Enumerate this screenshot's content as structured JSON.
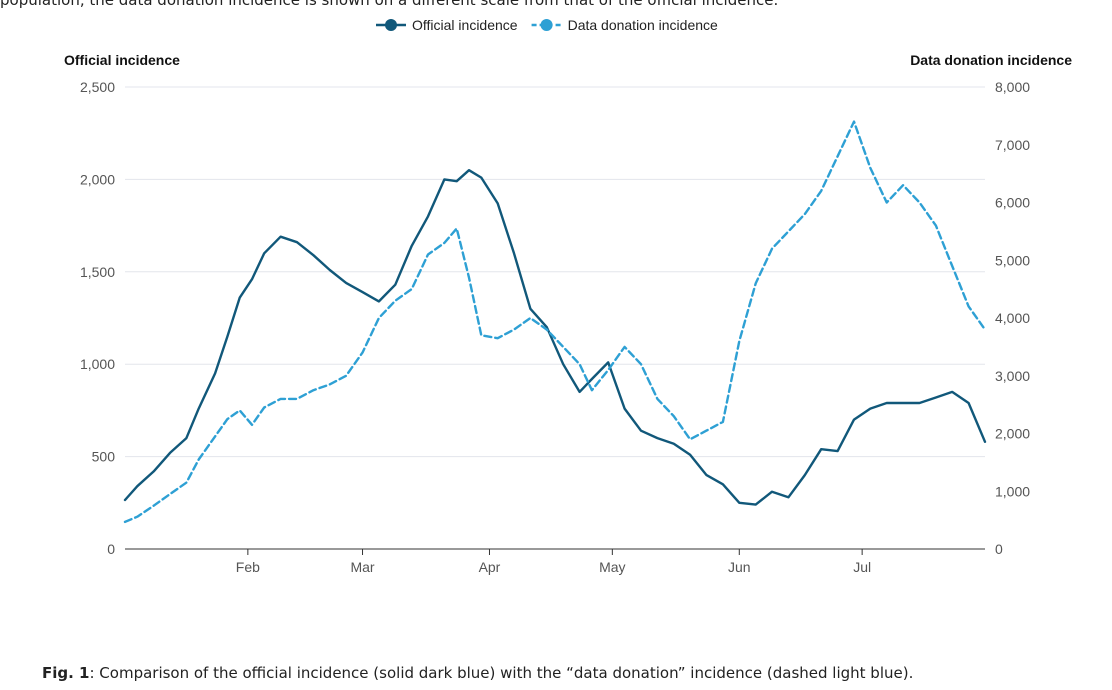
{
  "header": {
    "cutoff_text": "population, the data donation incidence is shown on a different scale from that of the official incidence."
  },
  "chart_data": {
    "type": "line",
    "legend_position": "top-center",
    "grid": true,
    "left_axis_title": "Official incidence",
    "right_axis_title": "Data donation incidence",
    "left_ylim": [
      0,
      2500
    ],
    "left_ticks": [
      0,
      500,
      1000,
      1500,
      2000,
      2500
    ],
    "left_tick_labels": [
      "0",
      "500",
      "1,000",
      "1,500",
      "2,000",
      "2,500"
    ],
    "right_ylim": [
      0,
      8000
    ],
    "right_ticks": [
      0,
      1000,
      2000,
      3000,
      4000,
      5000,
      6000,
      7000,
      8000
    ],
    "right_tick_labels": [
      "0",
      "1,000",
      "2,000",
      "3,000",
      "4,000",
      "5,000",
      "6,000",
      "7,000",
      "8,000"
    ],
    "xlim": [
      "Jan 2",
      "Jul 31"
    ],
    "x_tick_labels": [
      "Feb",
      "Mar",
      "Apr",
      "May",
      "Jun",
      "Jul"
    ],
    "x_ticks": [
      "Feb 1",
      "Mar 1",
      "Apr 1",
      "May 1",
      "Jun 1",
      "Jul 1"
    ],
    "series": [
      {
        "name": "Official incidence",
        "axis": "left",
        "color": "#11587a",
        "dashed": false,
        "x": [
          "Jan 2",
          "Jan 5",
          "Jan 9",
          "Jan 13",
          "Jan 17",
          "Jan 20",
          "Jan 24",
          "Jan 27",
          "Jan 30",
          "Feb 2",
          "Feb 5",
          "Feb 9",
          "Feb 13",
          "Feb 17",
          "Feb 21",
          "Feb 25",
          "Mar 1",
          "Mar 5",
          "Mar 9",
          "Mar 13",
          "Mar 17",
          "Mar 21",
          "Mar 24",
          "Mar 27",
          "Mar 30",
          "Apr 3",
          "Apr 7",
          "Apr 11",
          "Apr 15",
          "Apr 19",
          "Apr 23",
          "Apr 26",
          "Apr 30",
          "May 4",
          "May 8",
          "May 12",
          "May 16",
          "May 20",
          "May 24",
          "May 28",
          "Jun 1",
          "Jun 5",
          "Jun 9",
          "Jun 13",
          "Jun 17",
          "Jun 21",
          "Jun 25",
          "Jun 29",
          "Jul 3",
          "Jul 7",
          "Jul 11",
          "Jul 15",
          "Jul 19",
          "Jul 23",
          "Jul 27",
          "Jul 31"
        ],
        "y": [
          265,
          340,
          420,
          520,
          600,
          760,
          950,
          1150,
          1360,
          1460,
          1600,
          1690,
          1660,
          1590,
          1510,
          1440,
          1390,
          1340,
          1430,
          1640,
          1800,
          2000,
          1990,
          2050,
          2010,
          1870,
          1600,
          1300,
          1200,
          1000,
          850,
          920,
          1010,
          760,
          640,
          600,
          570,
          510,
          400,
          350,
          250,
          240,
          310,
          280,
          400,
          540,
          530,
          700,
          760,
          790,
          790,
          790,
          820,
          850,
          790,
          580
        ]
      },
      {
        "name": "Data donation incidence",
        "axis": "right",
        "color": "#2ea0d4",
        "dashed": true,
        "x": [
          "Jan 2",
          "Jan 5",
          "Jan 9",
          "Jan 13",
          "Jan 17",
          "Jan 20",
          "Jan 24",
          "Jan 27",
          "Jan 30",
          "Feb 2",
          "Feb 5",
          "Feb 9",
          "Feb 13",
          "Feb 17",
          "Feb 21",
          "Feb 25",
          "Mar 1",
          "Mar 5",
          "Mar 9",
          "Mar 13",
          "Mar 17",
          "Mar 21",
          "Mar 24",
          "Mar 27",
          "Mar 30",
          "Apr 3",
          "Apr 7",
          "Apr 11",
          "Apr 15",
          "Apr 19",
          "Apr 23",
          "Apr 26",
          "Apr 30",
          "May 4",
          "May 8",
          "May 12",
          "May 16",
          "May 20",
          "May 24",
          "May 28",
          "Jun 1",
          "Jun 5",
          "Jun 9",
          "Jun 13",
          "Jun 17",
          "Jun 21",
          "Jun 25",
          "Jun 29",
          "Jul 3",
          "Jul 7",
          "Jul 11",
          "Jul 15",
          "Jul 19",
          "Jul 23",
          "Jul 27",
          "Jul 31"
        ],
        "y": [
          470,
          560,
          750,
          950,
          1150,
          1550,
          1950,
          2250,
          2400,
          2150,
          2450,
          2600,
          2600,
          2750,
          2850,
          3000,
          3400,
          4000,
          4300,
          4500,
          5100,
          5300,
          5550,
          4700,
          3700,
          3650,
          3800,
          4000,
          3800,
          3500,
          3200,
          2750,
          3100,
          3500,
          3200,
          2600,
          2300,
          1900,
          2050,
          2200,
          3600,
          4600,
          5200,
          5500,
          5800,
          6200,
          6800,
          7400,
          6600,
          6000,
          6300,
          6000,
          5600,
          4900,
          4200,
          3800
        ]
      }
    ]
  },
  "caption": {
    "label": "Fig. 1",
    "text": ": Comparison of the official incidence (solid dark blue) with the “data donation” incidence (dashed light blue)."
  }
}
